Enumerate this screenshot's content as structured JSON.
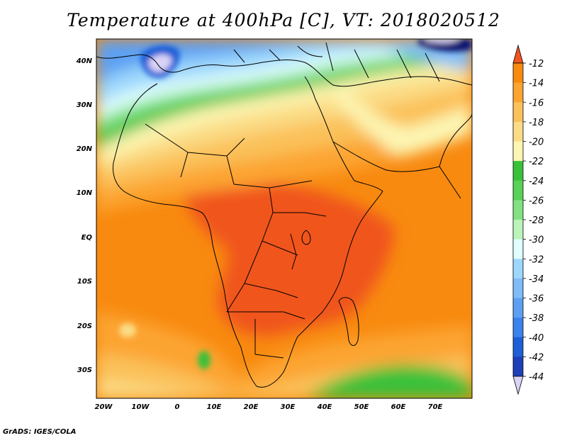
{
  "title": "Temperature at 400hPa [C], VT: 2018020512",
  "credit": "GrADS: IGES/COLA",
  "map": {
    "lon_range": [
      -23,
      80
    ],
    "lat_range": [
      -37,
      45
    ],
    "lon_ticks": [
      "20W",
      "10W",
      "0",
      "10E",
      "20E",
      "30E",
      "40E",
      "50E",
      "60E",
      "70E"
    ],
    "lat_ticks": [
      "40N",
      "30N",
      "20N",
      "10N",
      "EQ",
      "10S",
      "20S",
      "30S"
    ]
  },
  "colorbar": {
    "labels": [
      "-12",
      "-14",
      "-16",
      "-18",
      "-20",
      "-22",
      "-24",
      "-26",
      "-28",
      "-30",
      "-32",
      "-34",
      "-36",
      "-38",
      "-40",
      "-42",
      "-44"
    ],
    "colors": [
      "#f0541f",
      "#f88a10",
      "#fca431",
      "#fbc15a",
      "#fbdb85",
      "#fdf6b2",
      "#3ac13a",
      "#58d258",
      "#82e282",
      "#bbf4bb",
      "#e0fefe",
      "#9cd7fc",
      "#7fbcf8",
      "#5da0f3",
      "#3a82ec",
      "#1e5fd7",
      "#1d3fb7",
      "#0b1370",
      "#d9d3f6"
    ]
  }
}
